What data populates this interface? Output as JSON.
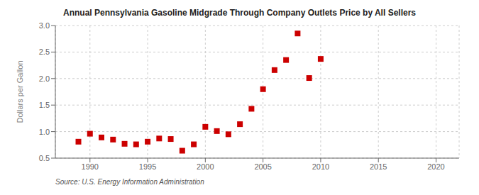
{
  "chart_data": {
    "type": "scatter",
    "title": "Annual Pennsylvania Gasoline Midgrade Through Company Outlets Price by All Sellers",
    "ylabel": "Dollars per Gallon",
    "annotation": "Source: U.S. Energy Information Administration",
    "x": [
      1989,
      1990,
      1991,
      1992,
      1993,
      1994,
      1995,
      1996,
      1997,
      1998,
      1999,
      2000,
      2001,
      2002,
      2003,
      2004,
      2005,
      2006,
      2007,
      2008,
      2009,
      2010
    ],
    "values": [
      0.81,
      0.96,
      0.89,
      0.85,
      0.77,
      0.76,
      0.81,
      0.87,
      0.86,
      0.64,
      0.76,
      1.09,
      1.01,
      0.95,
      1.14,
      1.43,
      1.8,
      2.16,
      2.35,
      2.85,
      2.01,
      2.37
    ],
    "color": "#cc0000",
    "marker": "square",
    "xlim": [
      1987,
      2022
    ],
    "ylim": [
      0.5,
      3.0
    ],
    "xticks": [
      1990,
      1995,
      2000,
      2005,
      2010,
      2015,
      2020
    ],
    "yticks": [
      0.5,
      {
        "value": 1,
        "label": "1.0"
      },
      1.5,
      {
        "value": 2,
        "label": "2.0"
      },
      2.5,
      {
        "value": 3,
        "label": "3.0"
      }
    ],
    "grid": true
  }
}
